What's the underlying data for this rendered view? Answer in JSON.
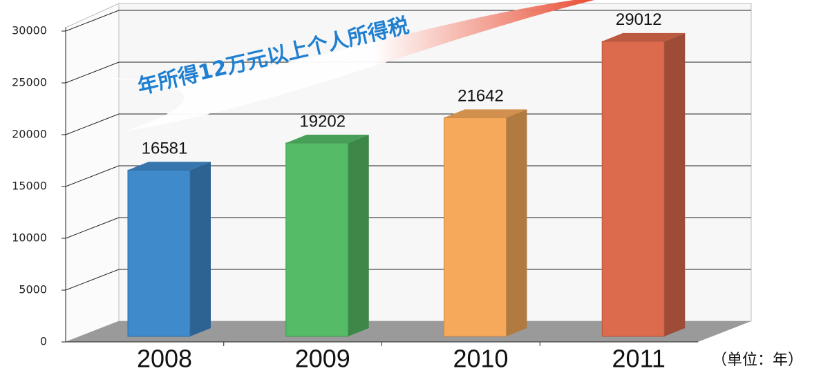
{
  "chart_data": {
    "type": "bar3d",
    "annotation": "年所得12万元以上个人所得税",
    "unit_label": "（单位：年）",
    "categories": [
      "2008",
      "2009",
      "2010",
      "2011"
    ],
    "values": [
      16581,
      19202,
      21642,
      29012
    ],
    "colors": [
      "#3f8acb",
      "#55bb66",
      "#f6a95a",
      "#dc6a4c"
    ],
    "ylim": [
      0,
      30000
    ],
    "yticks": [
      0,
      5000,
      10000,
      15000,
      20000,
      25000,
      30000
    ],
    "grid": true
  }
}
